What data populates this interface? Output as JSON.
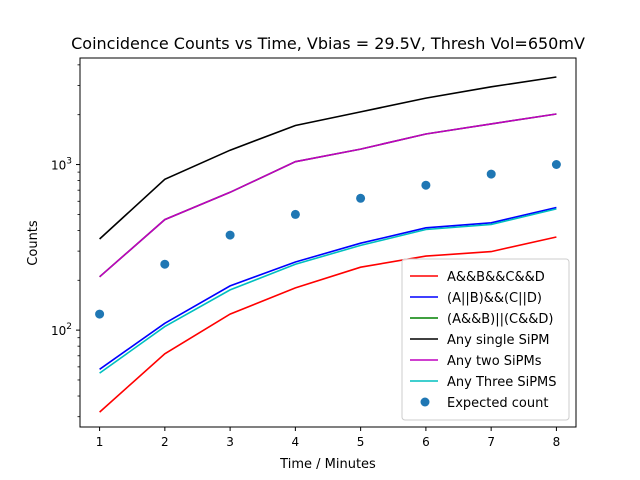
{
  "chart_data": {
    "type": "line",
    "title": "Coincidence Counts vs Time, Vbias = 29.5V, Thresh Vol=650mV",
    "xlabel": "Time / Minutes",
    "ylabel": "Counts",
    "yscale": "log",
    "xlim": [
      0.7,
      8.3
    ],
    "ylim": [
      26,
      4400
    ],
    "x": [
      1,
      2,
      3,
      4,
      5,
      6,
      7,
      8
    ],
    "x_ticks": [
      {
        "value": 1,
        "label": "1"
      },
      {
        "value": 2,
        "label": "2"
      },
      {
        "value": 3,
        "label": "3"
      },
      {
        "value": 4,
        "label": "4"
      },
      {
        "value": 5,
        "label": "5"
      },
      {
        "value": 6,
        "label": "6"
      },
      {
        "value": 7,
        "label": "7"
      },
      {
        "value": 8,
        "label": "8"
      }
    ],
    "y_ticks": [
      {
        "value": 100,
        "base": "10",
        "exp": "2"
      },
      {
        "value": 1000,
        "base": "10",
        "exp": "3"
      }
    ],
    "grid": false,
    "legend_position": "lower-right",
    "series": [
      {
        "name": "A&&B&&C&&D",
        "color": "#ff0000",
        "style": "line",
        "values": [
          32,
          72,
          125,
          180,
          240,
          280,
          298,
          365
        ]
      },
      {
        "name": "(A||B)&&(C||D)",
        "color": "#0000ff",
        "style": "line",
        "values": [
          58,
          110,
          185,
          258,
          335,
          415,
          445,
          550
        ]
      },
      {
        "name": "(A&&B)||(C&&D)",
        "color": "#008000",
        "style": "line",
        "values": [
          210,
          465,
          680,
          1040,
          1240,
          1530,
          1760,
          2020
        ]
      },
      {
        "name": "Any single SiPM",
        "color": "#000000",
        "style": "line",
        "values": [
          355,
          815,
          1220,
          1720,
          2080,
          2520,
          2950,
          3380
        ]
      },
      {
        "name": "Any two SiPMs",
        "color": "#bf00bf",
        "style": "line",
        "values": [
          210,
          465,
          680,
          1040,
          1240,
          1530,
          1760,
          2020
        ]
      },
      {
        "name": "Any Three SiPMS",
        "color": "#00bfbf",
        "style": "line",
        "values": [
          55,
          105,
          175,
          250,
          325,
          405,
          435,
          540
        ]
      },
      {
        "name": "Expected count",
        "color": "#1f77b4",
        "style": "scatter",
        "values": [
          125,
          250,
          375,
          500,
          625,
          750,
          875,
          1000
        ]
      }
    ]
  }
}
